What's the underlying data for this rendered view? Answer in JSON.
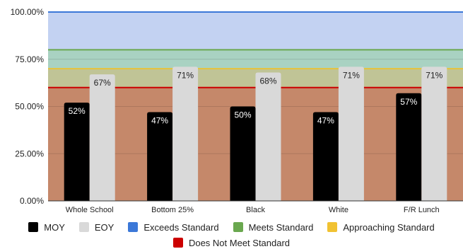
{
  "chart_data": {
    "type": "bar",
    "categories": [
      "Whole School",
      "Bottom 25%",
      "Black",
      "White",
      "F/R Lunch"
    ],
    "series": [
      {
        "name": "MOY",
        "values": [
          52,
          47,
          50,
          47,
          57
        ],
        "labels": [
          "52%",
          "47%",
          "50%",
          "47%",
          "57%"
        ],
        "color": "#000000",
        "label_color": "#ffffff"
      },
      {
        "name": "EOY",
        "values": [
          67,
          71,
          68,
          71,
          71
        ],
        "labels": [
          "67%",
          "71%",
          "68%",
          "71%",
          "71%"
        ],
        "color": "#d9d9d9",
        "label_color": "#222222"
      }
    ],
    "ylim": [
      0,
      100
    ],
    "yticks": [
      {
        "value": 0,
        "label": "0.00%"
      },
      {
        "value": 25,
        "label": "25.00%"
      },
      {
        "value": 50,
        "label": "50.00%"
      },
      {
        "value": 75,
        "label": "75.00%"
      },
      {
        "value": 100,
        "label": "100.00%"
      }
    ],
    "bands": [
      {
        "name": "Does Not Meet Standard",
        "from": 0,
        "to": 60,
        "fill": "#c5886a",
        "line": "#cc0000"
      },
      {
        "name": "Approaching Standard",
        "from": 60,
        "to": 70,
        "fill": "#c0c496",
        "line": "#e6c23b"
      },
      {
        "name": "Meets Standard",
        "from": 70,
        "to": 80,
        "fill": "#a9d2c2",
        "line": "#6aa84f"
      },
      {
        "name": "Exceeds Standard",
        "from": 80,
        "to": 100,
        "fill": "#c3d2f2",
        "line": "#3c78d8"
      }
    ],
    "legend": {
      "placement": "bottom",
      "row1": [
        {
          "label": "MOY",
          "color": "#000000"
        },
        {
          "label": "EOY",
          "color": "#d9d9d9"
        },
        {
          "label": "Exceeds Standard",
          "color": "#3c78d8"
        },
        {
          "label": "Meets Standard",
          "color": "#6aa84f"
        },
        {
          "label": "Approaching Standard",
          "color": "#f1c232"
        }
      ],
      "row2": [
        {
          "label": "Does Not Meet Standard",
          "color": "#cc0000"
        }
      ]
    }
  }
}
